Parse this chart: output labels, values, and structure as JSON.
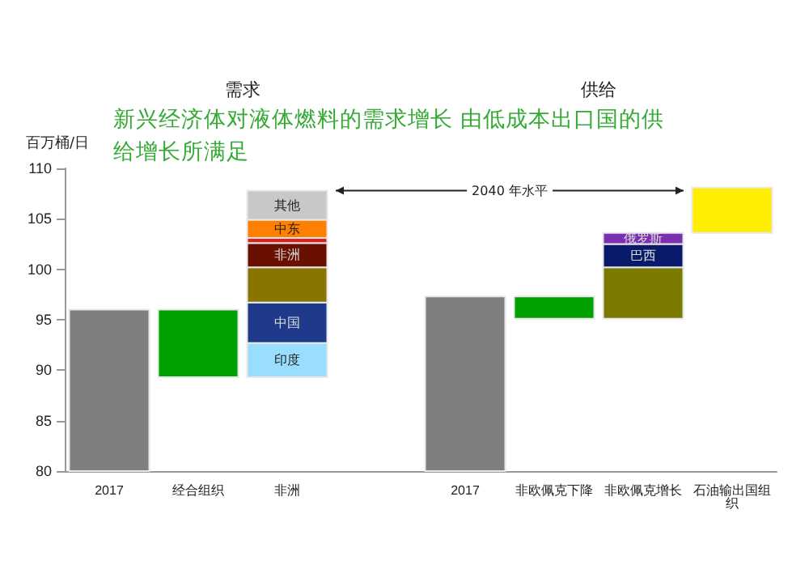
{
  "chart_data": {
    "type": "bar",
    "title": "新兴经济体对液体燃料的需求增长 由低成本出口国的供给增长所满足",
    "ylabel": "百万桶/日",
    "annotations": [
      "需求",
      "供给",
      "2040 年水平"
    ],
    "categories": [
      "2017",
      "经合组织",
      "非洲",
      null,
      "2017",
      "非欧佩克下降",
      "非欧佩克增长",
      "石油输出国组织"
    ],
    "ylim": [
      80,
      110
    ],
    "yticks": [
      80,
      85,
      90,
      95,
      100,
      105,
      110
    ],
    "grid": false,
    "legend": false,
    "series": [
      {
        "color": "#7f7f7f",
        "values": [
          16,
          null,
          null,
          null,
          17.3,
          null,
          null,
          null
        ],
        "base": [
          80,
          null,
          null,
          null,
          80,
          null,
          null,
          null
        ]
      },
      {
        "color": "#00a000",
        "values": [
          null,
          -6.7,
          null,
          null,
          null,
          null,
          null,
          null
        ],
        "base": [
          null,
          96,
          null,
          null,
          null,
          null,
          null,
          null
        ]
      },
      {
        "name": "印度",
        "color": "#99ddff",
        "values": [
          null,
          null,
          3.4,
          null,
          null,
          null,
          null,
          null
        ],
        "base": [
          null,
          null,
          89.3,
          null,
          null,
          null,
          null,
          null
        ]
      },
      {
        "name": "中国",
        "color": "#1f3a8a",
        "values": [
          null,
          null,
          4,
          null,
          null,
          null,
          null,
          null
        ],
        "base": [
          null,
          null,
          92.7,
          null,
          null,
          null,
          null,
          null
        ]
      },
      {
        "color": "#8a7400",
        "values": [
          null,
          null,
          3.5,
          null,
          null,
          null,
          null,
          null
        ],
        "base": [
          null,
          null,
          96.7,
          null,
          null,
          null,
          null,
          null
        ]
      },
      {
        "name": "非洲",
        "color": "#6a1000",
        "values": [
          null,
          null,
          2.4,
          null,
          null,
          null,
          null,
          null
        ],
        "base": [
          null,
          null,
          100.2,
          null,
          null,
          null,
          null,
          null
        ]
      },
      {
        "color": "#e02020",
        "values": [
          null,
          null,
          0.5,
          null,
          null,
          null,
          null,
          null
        ],
        "base": [
          null,
          null,
          102.6,
          null,
          null,
          null,
          null,
          null
        ]
      },
      {
        "name": "中东",
        "color": "#ff8000",
        "values": [
          null,
          null,
          1.8,
          null,
          null,
          null,
          null,
          null
        ],
        "base": [
          null,
          null,
          103.1,
          null,
          null,
          null,
          null,
          null
        ]
      },
      {
        "name": "其他",
        "color": "#c8c8c8",
        "values": [
          null,
          null,
          2.9,
          null,
          null,
          null,
          null,
          null
        ],
        "base": [
          null,
          null,
          104.9,
          null,
          null,
          null,
          null,
          null
        ]
      },
      {
        "color": "#00a000",
        "values": [
          null,
          null,
          null,
          null,
          null,
          -2.2,
          null,
          null
        ],
        "base": [
          null,
          null,
          null,
          null,
          null,
          97.3,
          null,
          null
        ]
      },
      {
        "color": "#7a7a00",
        "values": [
          null,
          null,
          null,
          null,
          null,
          null,
          5.1,
          null
        ],
        "base": [
          null,
          null,
          null,
          null,
          null,
          null,
          95.1,
          null
        ]
      },
      {
        "name": "巴西",
        "color": "#0a1a6a",
        "values": [
          null,
          null,
          null,
          null,
          null,
          null,
          2.3,
          null
        ],
        "base": [
          null,
          null,
          null,
          null,
          null,
          null,
          100.2,
          null
        ]
      },
      {
        "name": "俄罗斯",
        "color": "#7a30b0",
        "values": [
          null,
          null,
          null,
          null,
          null,
          null,
          1.1,
          null
        ],
        "base": [
          null,
          null,
          null,
          null,
          null,
          null,
          102.5,
          null
        ]
      },
      {
        "color": "#ffee00",
        "values": [
          null,
          null,
          null,
          null,
          null,
          null,
          null,
          4.5
        ],
        "base": [
          null,
          null,
          null,
          null,
          null,
          null,
          null,
          103.6
        ]
      }
    ]
  }
}
